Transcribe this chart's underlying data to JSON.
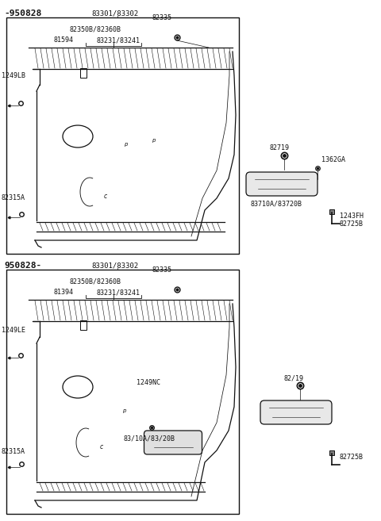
{
  "bg_color": "#ffffff",
  "line_color": "#111111",
  "text_color": "#111111",
  "fig_width": 4.8,
  "fig_height": 6.57,
  "dpi": 100,
  "top_label": "-950828",
  "top_part": "83301/83302",
  "top_82350": "82350B/82360B",
  "top_83231": "83231/83241",
  "top_81594": "81594",
  "top_82335": "82335",
  "top_1249LB": "1249LB",
  "top_82315A": "82315A",
  "bot_label": "950828-",
  "bot_part": "83301/83302",
  "bot_82350": "82350B/82360B",
  "bot_83231": "83231/83241",
  "bot_81394": "81394",
  "bot_82335": "82335",
  "bot_1249LB": "1249LE",
  "bot_82315A": "82315A",
  "bot_1249NC": "1249NC",
  "bot_83710": "83/10A/83/20B",
  "r_82719": "82719",
  "r_1362GA": "1362GA",
  "r_83710": "83710A/83720B",
  "r_1243FH": "1243FH",
  "r_82725B": "82725B",
  "r_8219": "82/19",
  "r_82725B2": "82725B"
}
